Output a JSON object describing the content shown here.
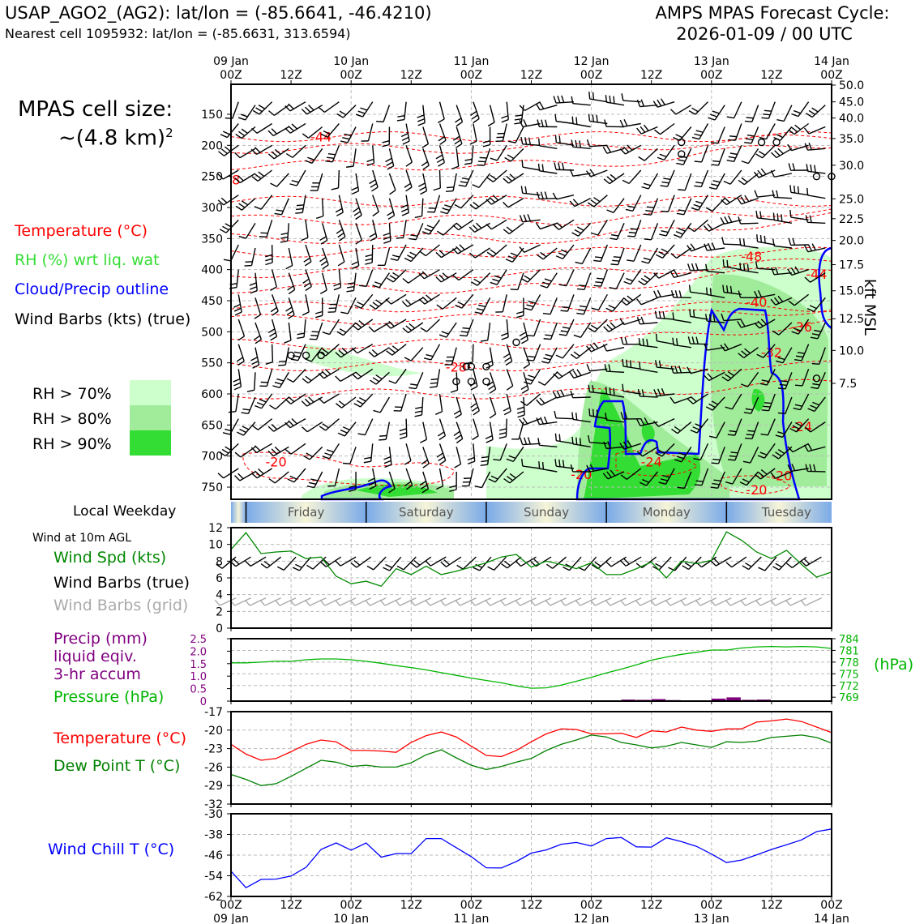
{
  "header": {
    "title_left": "USAP_AGO2_(AG2): lat/lon = (-85.6641, -46.4210)",
    "subtitle_left": "Nearest cell 1095932: lat/lon = (-85.6631, 313.6594)",
    "title_right": "AMPS MPAS Forecast Cycle:",
    "title_right_2": "2026-01-09 / 00 UTC"
  },
  "side": {
    "cell_size_1": "MPAS cell size:",
    "cell_size_2": "~(4.8 km)",
    "cell_size_sup": "2",
    "legend_temperature": "Temperature (°C)",
    "legend_rh": "RH (%) wrt liq. wat",
    "legend_cloud": "Cloud/Precip outline",
    "legend_wind": "Wind Barbs (kts) (true)",
    "rh_70": "RH > 70%",
    "rh_80": "RH > 80%",
    "rh_90": "RH > 90%",
    "local_weekday": "Local Weekday",
    "wind_10m": "Wind at 10m AGL",
    "wind_spd": "Wind Spd (kts)",
    "wind_barbs_true": "Wind Barbs (true)",
    "wind_barbs_grid": "Wind Barbs (grid)",
    "precip_1": "Precip (mm)",
    "precip_2": "liquid eqiv.",
    "precip_3": "3-hr accum",
    "pressure": "Pressure (hPa)",
    "temperature": "Temperature (°C)",
    "dewpoint": "Dew Point T (°C)",
    "windchill": "Wind Chill T (°C)",
    "kft_msl": "kft MSL",
    "hpa_unit": "(hPa)"
  },
  "colors": {
    "temperature": "#ff0000",
    "rh_legend": "#33dd33",
    "rh70": "#ccffcc",
    "rh80": "#a0ec9a",
    "rh90": "#33dd33",
    "cloud": "#0000ff",
    "wind_spd": "#008800",
    "wind_grid": "#aaaaaa",
    "precip": "#800080",
    "pressure": "#00b400",
    "dewpoint": "#008000",
    "windchill": "#0000ff"
  },
  "chart_data": [
    {
      "type": "heatmap",
      "name": "time-height cross section",
      "top_axis": {
        "dates": [
          "09 Jan",
          "10 Jan",
          "11 Jan",
          "12 Jan",
          "13 Jan",
          "14 Jan"
        ],
        "hours": [
          "00Z",
          "12Z",
          "00Z",
          "12Z",
          "00Z",
          "12Z",
          "00Z",
          "12Z",
          "00Z",
          "12Z",
          "00Z"
        ]
      },
      "x_hours_range": [
        0,
        120
      ],
      "y_pressure_ticks": [
        150,
        200,
        250,
        300,
        350,
        400,
        450,
        500,
        550,
        600,
        650,
        700,
        750
      ],
      "y_kft_ticks": [
        "50.0",
        "45.0",
        "40.0",
        "35.0",
        "30.0",
        "25.0",
        "22.5",
        "20.0",
        "17.5",
        "15.0",
        "12.5",
        "10.0",
        "7.5"
      ],
      "y_kft_pressure": [
        103,
        130,
        156,
        189,
        232,
        286,
        318,
        353,
        392,
        434,
        479,
        530,
        583
      ],
      "temperature_labels": [
        {
          "text": "-44",
          "t": 18,
          "p": 186
        },
        {
          "text": "8",
          "t": 1,
          "p": 255
        },
        {
          "text": "-48",
          "t": 104,
          "p": 378
        },
        {
          "text": "-44",
          "t": 117,
          "p": 407
        },
        {
          "text": "-40",
          "t": 105,
          "p": 452
        },
        {
          "text": "-36",
          "t": 114,
          "p": 492
        },
        {
          "text": "-32",
          "t": 108,
          "p": 533
        },
        {
          "text": "-28",
          "t": 45,
          "p": 556
        },
        {
          "text": "-24",
          "t": 114,
          "p": 652
        },
        {
          "text": "-24",
          "t": 84,
          "p": 709
        },
        {
          "text": "-20",
          "t": 9,
          "p": 709
        },
        {
          "text": "-20",
          "t": 70,
          "p": 729
        },
        {
          "text": "-20",
          "t": 105,
          "p": 754
        },
        {
          "text": "-20",
          "t": 110,
          "p": 731
        }
      ]
    },
    {
      "type": "bar",
      "name": "local weekday strip",
      "categories": [
        "Friday",
        "Saturday",
        "Sunday",
        "Monday",
        "Tuesday"
      ]
    },
    {
      "type": "line",
      "name": "10m wind speed",
      "x_hours": [
        0,
        3,
        6,
        9,
        12,
        15,
        18,
        21,
        24,
        27,
        30,
        33,
        36,
        39,
        42,
        45,
        48,
        51,
        54,
        57,
        60,
        63,
        66,
        69,
        72,
        75,
        78,
        81,
        84,
        87,
        90,
        93,
        96,
        99,
        102,
        105,
        108,
        111,
        114,
        117,
        120
      ],
      "values": [
        9.4,
        11.4,
        8.9,
        9.1,
        9.2,
        8.3,
        8.5,
        6.2,
        5.3,
        5.6,
        5.0,
        7.1,
        6.4,
        7.4,
        6.4,
        6.8,
        7.3,
        7.8,
        8.5,
        8.8,
        7.3,
        8.0,
        7.6,
        7.1,
        7.8,
        6.4,
        6.4,
        7.1,
        7.9,
        6.0,
        8.0,
        7.7,
        8.1,
        11.5,
        10.5,
        9.1,
        8.3,
        9.3,
        7.6,
        6.1,
        6.7
      ],
      "ylim": [
        0,
        12
      ],
      "yticks": [
        0,
        2,
        4,
        6,
        8,
        10,
        12
      ]
    },
    {
      "type": "line",
      "name": "precip and pressure",
      "x_hours": [
        0,
        3,
        6,
        9,
        12,
        15,
        18,
        21,
        24,
        27,
        30,
        33,
        36,
        39,
        42,
        45,
        48,
        51,
        54,
        57,
        60,
        63,
        66,
        69,
        72,
        75,
        78,
        81,
        84,
        87,
        90,
        93,
        96,
        99,
        102,
        105,
        108,
        111,
        114,
        117,
        120
      ],
      "pressure": [
        777.8,
        777.8,
        778.0,
        778.2,
        778.2,
        778.6,
        778.8,
        778.8,
        778.6,
        778.2,
        777.7,
        777.1,
        776.6,
        776.0,
        775.3,
        774.6,
        773.9,
        773.3,
        772.7,
        771.9,
        771.3,
        771.4,
        772.1,
        773.1,
        774.1,
        775.2,
        776.2,
        777.3,
        778.5,
        779.3,
        780.0,
        780.5,
        781.1,
        781.1,
        781.6,
        781.9,
        782.0,
        781.9,
        782.0,
        781.9,
        781.5
      ],
      "precip_mm": [
        0,
        0,
        0,
        0,
        0,
        0,
        0,
        0,
        0,
        0,
        0,
        0,
        0,
        0,
        0,
        0,
        0,
        0,
        0,
        0,
        0,
        0,
        0,
        0,
        0,
        0,
        0.06,
        0.05,
        0.08,
        0.04,
        0,
        0,
        0.1,
        0.15,
        0.05,
        0.06,
        0,
        0,
        0,
        0,
        0
      ],
      "precip_yticks": [
        "0",
        "0.5",
        "1.0",
        "1.5",
        "2.0",
        "2.5"
      ],
      "precip_ylim": [
        0,
        2.5
      ],
      "pressure_yticks": [
        769,
        772,
        775,
        778,
        781,
        784
      ],
      "pressure_ylim": [
        768,
        784
      ]
    },
    {
      "type": "line",
      "name": "temperature and dew point",
      "x_hours": [
        0,
        3,
        6,
        9,
        12,
        15,
        18,
        21,
        24,
        27,
        30,
        33,
        36,
        39,
        42,
        45,
        48,
        51,
        54,
        57,
        60,
        63,
        66,
        69,
        72,
        75,
        78,
        81,
        84,
        87,
        90,
        93,
        96,
        99,
        102,
        105,
        108,
        111,
        114,
        117,
        120
      ],
      "temperature": [
        -22.3,
        -23.9,
        -24.9,
        -24.6,
        -23.5,
        -22.3,
        -21.6,
        -21.9,
        -23.3,
        -23.3,
        -23.4,
        -23.6,
        -22.0,
        -20.9,
        -20.3,
        -21.1,
        -22.6,
        -24.1,
        -24.3,
        -23.3,
        -21.9,
        -20.6,
        -19.8,
        -19.9,
        -20.6,
        -20.6,
        -20.5,
        -21.2,
        -20.1,
        -20.3,
        -19.5,
        -20.0,
        -20.2,
        -19.8,
        -19.8,
        -18.7,
        -18.5,
        -18.2,
        -18.6,
        -19.5,
        -20.4
      ],
      "dewpoint": [
        -27.2,
        -28.0,
        -29.0,
        -28.7,
        -27.5,
        -26.2,
        -24.9,
        -25.2,
        -25.9,
        -25.7,
        -26.0,
        -26.0,
        -25.3,
        -24.0,
        -23.2,
        -24.5,
        -25.7,
        -26.4,
        -25.9,
        -25.2,
        -24.6,
        -23.3,
        -22.3,
        -21.6,
        -20.8,
        -21.1,
        -22.0,
        -22.4,
        -22.9,
        -22.6,
        -22.0,
        -22.4,
        -22.8,
        -21.9,
        -22.0,
        -21.8,
        -21.2,
        -21.0,
        -20.8,
        -21.2,
        -22.1
      ],
      "ylim": [
        -32,
        -17
      ],
      "yticks": [
        -32,
        -29,
        -26,
        -23,
        -20,
        -17
      ]
    },
    {
      "type": "line",
      "name": "wind chill",
      "x_hours": [
        0,
        3,
        6,
        9,
        12,
        15,
        18,
        21,
        24,
        27,
        30,
        33,
        36,
        39,
        42,
        45,
        48,
        51,
        54,
        57,
        60,
        63,
        66,
        69,
        72,
        75,
        78,
        81,
        84,
        87,
        90,
        93,
        96,
        99,
        102,
        105,
        108,
        111,
        114,
        117,
        120
      ],
      "values": [
        -52.2,
        -58.6,
        -55.4,
        -55.3,
        -54.1,
        -50.7,
        -43.8,
        -41.3,
        -44.1,
        -41.3,
        -46.8,
        -45.4,
        -45.4,
        -39.6,
        -39.6,
        -43.1,
        -46.6,
        -50.9,
        -51.0,
        -48.5,
        -45.2,
        -44.0,
        -41.8,
        -41.1,
        -42.5,
        -39.6,
        -39.2,
        -42.8,
        -42.9,
        -39.3,
        -40.8,
        -42.6,
        -45.6,
        -48.9,
        -47.9,
        -45.9,
        -43.8,
        -42.0,
        -40.1,
        -36.9,
        -35.9
      ],
      "ylim": [
        -62,
        -30
      ],
      "yticks": [
        -62,
        -54,
        -46,
        -38,
        -30
      ]
    }
  ],
  "bottom_axis": {
    "hours": [
      "00Z",
      "12Z",
      "00Z",
      "12Z",
      "00Z",
      "12Z",
      "00Z",
      "12Z",
      "00Z",
      "12Z",
      "00Z"
    ],
    "dates": [
      "09 Jan",
      "10 Jan",
      "11 Jan",
      "12 Jan",
      "13 Jan",
      "14 Jan"
    ]
  }
}
